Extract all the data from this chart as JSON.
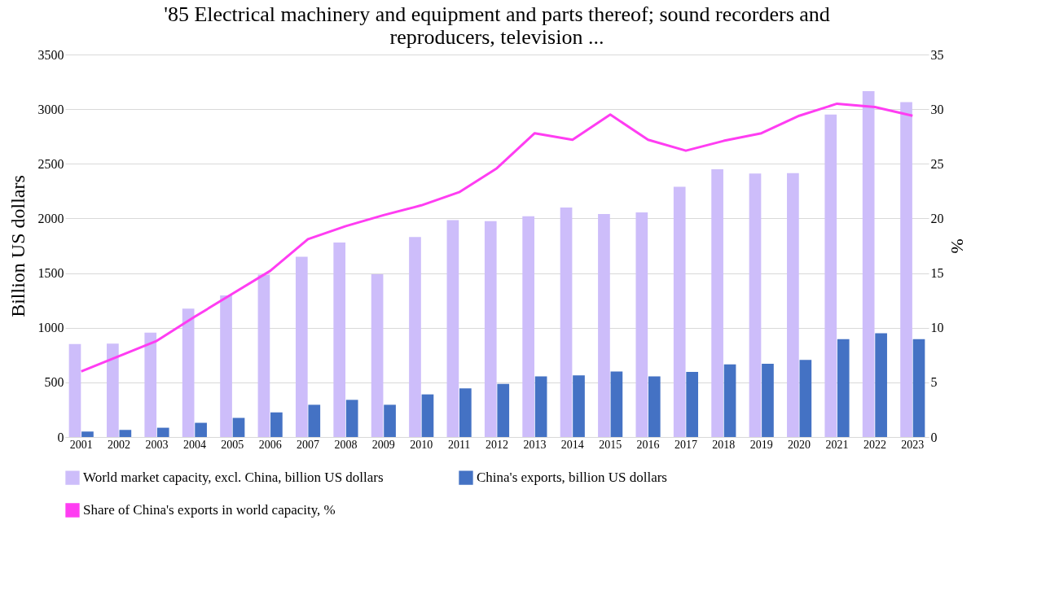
{
  "chart_data": {
    "type": "bar",
    "title": "'85 Electrical machinery and equipment and parts thereof; sound recorders and reproducers, television ...",
    "ylabel": "Billion US  dollars",
    "y2label": "%",
    "categories": [
      "2001",
      "2002",
      "2003",
      "2004",
      "2005",
      "2006",
      "2007",
      "2008",
      "2009",
      "2010",
      "2011",
      "2012",
      "2013",
      "2014",
      "2015",
      "2016",
      "2017",
      "2018",
      "2019",
      "2020",
      "2021",
      "2022",
      "2023"
    ],
    "series": [
      {
        "name": "World market capacity, excl. China, billion US dollars",
        "color": "#cdbdfa",
        "values": [
          850,
          855,
          955,
          1175,
          1295,
          1485,
          1650,
          1780,
          1490,
          1830,
          1985,
          1975,
          2020,
          2100,
          2040,
          2055,
          2290,
          2450,
          2410,
          2415,
          2950,
          3165,
          3065
        ]
      },
      {
        "name": "China's exports, billion US dollars",
        "color": "#4472c4",
        "values": [
          50,
          65,
          85,
          130,
          175,
          225,
          295,
          340,
          295,
          390,
          445,
          485,
          555,
          565,
          600,
          555,
          595,
          665,
          670,
          705,
          895,
          950,
          895
        ]
      },
      {
        "name": "Share of China's exports in world capacity, %",
        "type": "line",
        "axis": "y2",
        "color": "#ff3df2",
        "values": [
          6.0,
          7.4,
          8.8,
          11.0,
          13.1,
          15.2,
          18.1,
          19.3,
          20.3,
          21.2,
          22.4,
          24.6,
          27.8,
          27.2,
          29.5,
          27.2,
          26.2,
          27.1,
          27.8,
          29.4,
          30.5,
          30.2,
          29.4
        ]
      }
    ],
    "ylim": [
      0,
      3500
    ],
    "yticks": [
      0,
      500,
      1000,
      1500,
      2000,
      2500,
      3000,
      3500
    ],
    "y2lim": [
      0,
      35
    ],
    "y2ticks": [
      0,
      5,
      10,
      15,
      20,
      25,
      30,
      35
    ],
    "grid": "y",
    "legend": "bottom"
  }
}
